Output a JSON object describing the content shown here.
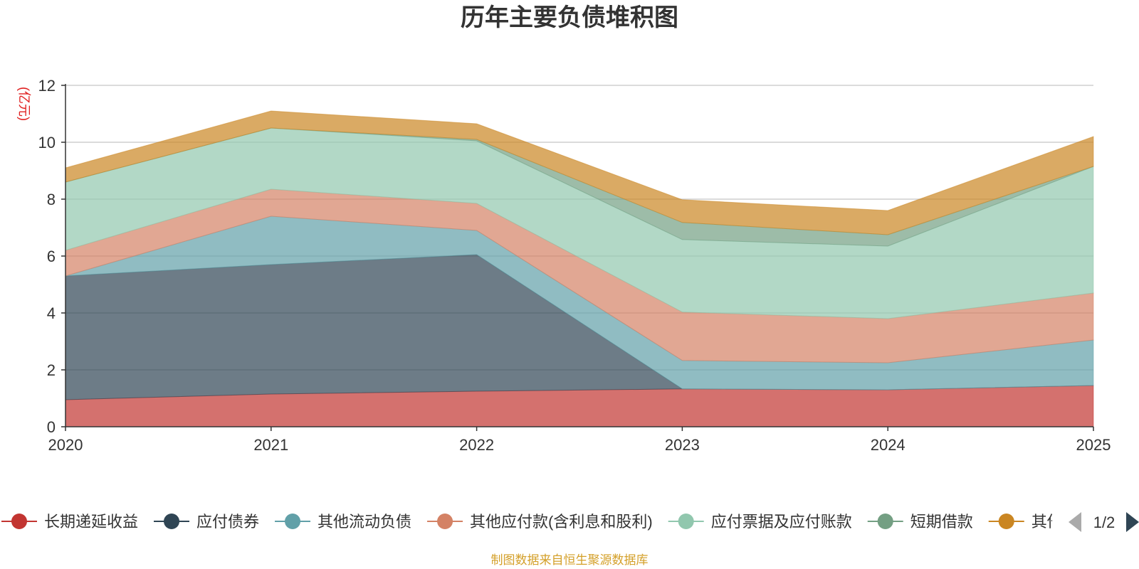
{
  "chart_data": {
    "type": "area",
    "stacked": true,
    "title": "历年主要负债堆积图",
    "ylabel": "(亿元)",
    "xlabel": "",
    "x": [
      "2020",
      "2021",
      "2022",
      "2023",
      "2024",
      "2025"
    ],
    "ylim": [
      0,
      12
    ],
    "yticks": [
      0,
      2,
      4,
      6,
      8,
      10,
      12
    ],
    "grid": true,
    "series": [
      {
        "name": "长期递延收益",
        "color": "#c23531",
        "values": [
          0.95,
          1.15,
          1.25,
          1.33,
          1.3,
          1.45
        ]
      },
      {
        "name": "应付债券",
        "color": "#2f4554",
        "values": [
          4.35,
          4.55,
          4.8,
          0.0,
          0.0,
          0.0
        ]
      },
      {
        "name": "其他流动负债",
        "color": "#61a0a8",
        "values": [
          0.0,
          1.7,
          0.85,
          1.0,
          0.95,
          1.6
        ]
      },
      {
        "name": "其他应付款(含利息和股利)",
        "color": "#d48265",
        "values": [
          0.9,
          0.95,
          0.95,
          1.7,
          1.55,
          1.65
        ]
      },
      {
        "name": "应付票据及应付账款",
        "color": "#91c7ae",
        "values": [
          2.4,
          2.15,
          2.2,
          2.55,
          2.55,
          4.45
        ]
      },
      {
        "name": "短期借款",
        "color": "#749f83",
        "values": [
          0.0,
          0.0,
          0.05,
          0.6,
          0.4,
          0.0
        ]
      },
      {
        "name": "其他",
        "color": "#ca8622",
        "values": [
          0.5,
          0.6,
          0.55,
          0.8,
          0.85,
          1.05
        ]
      }
    ]
  },
  "legend": {
    "page": "1/2"
  },
  "footer": {
    "source": "制图数据来自恒生聚源数据库"
  }
}
